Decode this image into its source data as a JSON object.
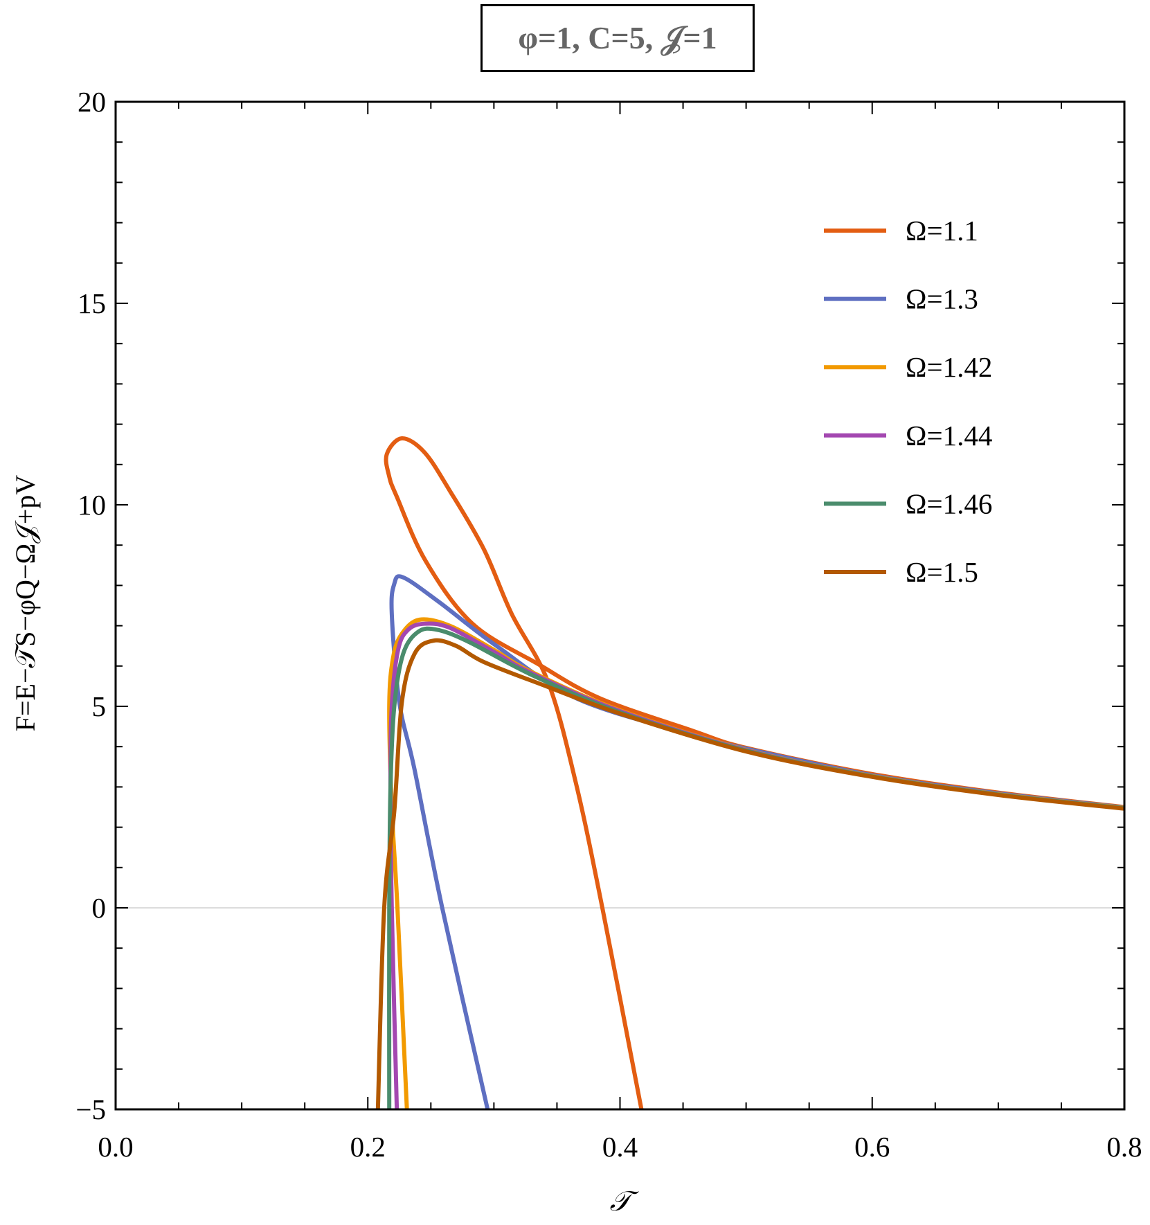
{
  "chart_data": {
    "type": "line",
    "title": "φ=1, C=5, 𝒥=1",
    "xlabel": "𝒯",
    "ylabel": "F=E−𝒯S−φQ−Ω𝒥+pV",
    "xlim": [
      0.0,
      0.8
    ],
    "ylim": [
      -5,
      20
    ],
    "xticks": [
      "0.0",
      "0.2",
      "0.4",
      "0.6",
      "0.8"
    ],
    "yticks": [
      "−5",
      "0",
      "5",
      "10",
      "15",
      "20"
    ],
    "grid": false,
    "legend_position": "top-right",
    "series": [
      {
        "name": "Ω=1.1",
        "color": "#E35D12",
        "points": [
          [
            0.417,
            -5
          ],
          [
            0.386,
            0
          ],
          [
            0.365,
            3.1
          ],
          [
            0.343,
            5.6
          ],
          [
            0.314,
            7.3
          ],
          [
            0.292,
            8.9
          ],
          [
            0.265,
            10.35
          ],
          [
            0.245,
            11.3
          ],
          [
            0.227,
            11.65
          ],
          [
            0.215,
            11.25
          ],
          [
            0.217,
            10.7
          ],
          [
            0.223,
            10.2
          ],
          [
            0.246,
            8.6
          ],
          [
            0.283,
            7.05
          ],
          [
            0.335,
            6.05
          ],
          [
            0.384,
            5.2
          ],
          [
            0.457,
            4.4
          ],
          [
            0.5,
            3.97
          ],
          [
            0.6,
            3.32
          ],
          [
            0.7,
            2.86
          ],
          [
            0.8,
            2.5
          ]
        ]
      },
      {
        "name": "Ω=1.3",
        "color": "#5E6FC1",
        "points": [
          [
            0.295,
            -5
          ],
          [
            0.259,
            0
          ],
          [
            0.237,
            3.44
          ],
          [
            0.225,
            5.1
          ],
          [
            0.219,
            7.3
          ],
          [
            0.221,
            8.04
          ],
          [
            0.228,
            8.2
          ],
          [
            0.256,
            7.6
          ],
          [
            0.302,
            6.5
          ],
          [
            0.366,
            5.19
          ],
          [
            0.457,
            4.3
          ],
          [
            0.5,
            3.95
          ],
          [
            0.6,
            3.29
          ],
          [
            0.7,
            2.84
          ],
          [
            0.8,
            2.49
          ]
        ]
      },
      {
        "name": "Ω=1.42",
        "color": "#F29A00",
        "points": [
          [
            0.231,
            -5
          ],
          [
            0.2235,
            0
          ],
          [
            0.219,
            2.5
          ],
          [
            0.217,
            5.0
          ],
          [
            0.22,
            6.2
          ],
          [
            0.227,
            6.8
          ],
          [
            0.241,
            7.15
          ],
          [
            0.265,
            7.0
          ],
          [
            0.3,
            6.4
          ],
          [
            0.33,
            5.85
          ],
          [
            0.4,
            4.9
          ],
          [
            0.5,
            3.92
          ],
          [
            0.6,
            3.27
          ],
          [
            0.7,
            2.82
          ],
          [
            0.8,
            2.48
          ]
        ]
      },
      {
        "name": "Ω=1.44",
        "color": "#A347B0",
        "points": [
          [
            0.223,
            -5
          ],
          [
            0.219,
            0
          ],
          [
            0.218,
            3
          ],
          [
            0.219,
            5.0
          ],
          [
            0.224,
            6.4
          ],
          [
            0.232,
            6.9
          ],
          [
            0.245,
            7.05
          ],
          [
            0.265,
            6.95
          ],
          [
            0.3,
            6.35
          ],
          [
            0.33,
            5.82
          ],
          [
            0.4,
            4.88
          ],
          [
            0.5,
            3.91
          ],
          [
            0.6,
            3.26
          ],
          [
            0.7,
            2.81
          ],
          [
            0.8,
            2.47
          ]
        ]
      },
      {
        "name": "Ω=1.46",
        "color": "#4A8C6C",
        "points": [
          [
            0.217,
            -5
          ],
          [
            0.217,
            0
          ],
          [
            0.218,
            3
          ],
          [
            0.221,
            5.0
          ],
          [
            0.228,
            6.3
          ],
          [
            0.24,
            6.85
          ],
          [
            0.255,
            6.9
          ],
          [
            0.28,
            6.6
          ],
          [
            0.33,
            5.78
          ],
          [
            0.4,
            4.85
          ],
          [
            0.5,
            3.9
          ],
          [
            0.6,
            3.26
          ],
          [
            0.7,
            2.81
          ],
          [
            0.8,
            2.47
          ]
        ]
      },
      {
        "name": "Ω=1.5",
        "color": "#B35900",
        "points": [
          [
            0.208,
            -5
          ],
          [
            0.213,
            0
          ],
          [
            0.221,
            2.4
          ],
          [
            0.227,
            5.1
          ],
          [
            0.237,
            6.3
          ],
          [
            0.252,
            6.63
          ],
          [
            0.27,
            6.5
          ],
          [
            0.292,
            6.1
          ],
          [
            0.338,
            5.54
          ],
          [
            0.4,
            4.82
          ],
          [
            0.5,
            3.88
          ],
          [
            0.6,
            3.25
          ],
          [
            0.7,
            2.8
          ],
          [
            0.8,
            2.46
          ]
        ]
      }
    ]
  }
}
